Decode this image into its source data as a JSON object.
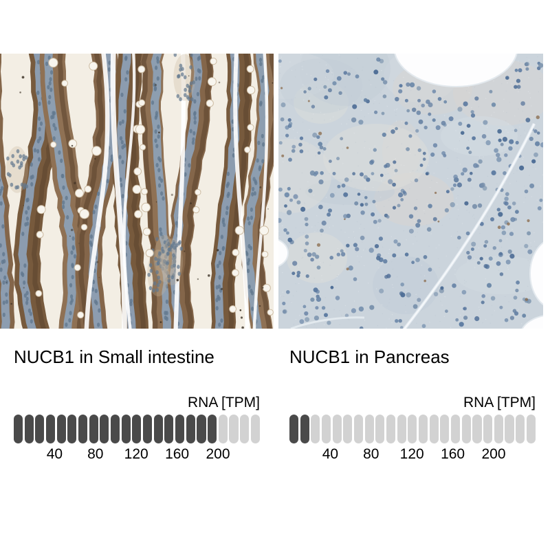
{
  "figure": {
    "panels": [
      {
        "key": "small_intestine",
        "title": "NUCB1 in Small intestine",
        "rna_unit_label": "RNA [TPM]",
        "bar": {
          "total_segments": 23,
          "filled_segments": 19,
          "ticks": [
            40,
            80,
            120,
            160,
            200
          ]
        },
        "approx_value_tpm": 200,
        "micrograph_kind": "ihc-brown-positive-small-intestine"
      },
      {
        "key": "pancreas",
        "title": "NUCB1 in Pancreas",
        "rna_unit_label": "RNA [TPM]",
        "bar": {
          "total_segments": 23,
          "filled_segments": 2,
          "ticks": [
            40,
            80,
            120,
            160,
            200
          ]
        },
        "approx_value_tpm": 20,
        "micrograph_kind": "ihc-blue-negative-pancreas"
      }
    ],
    "colors": {
      "page_background": "#ffffff",
      "text": "#000000",
      "pill_filled": "#4a4a4a",
      "pill_empty": "#d2d2d2",
      "intestine": {
        "bg": "#f3eee4",
        "brown": [
          "#84664a",
          "#775a3d",
          "#8f7154"
        ],
        "brown_dark": "#5d452e",
        "nuclei_band": "#8da0b5",
        "nucleus": "#61788f",
        "stroma": "#c9b59c",
        "goblet": "#f8f5ee",
        "goblet_edge": "#cdbca3",
        "speck": "#32271c"
      },
      "pancreas": {
        "bg": "#cbd4dc",
        "patches": [
          "#d8d5d0",
          "#d3dae1",
          "#c2ccd7",
          "#dfdfda"
        ],
        "grain_light": "#edf0f3",
        "grain_dark": "#b8c3cf",
        "nuclei": [
          "#5d7ba1",
          "#6b87a8",
          "#4f6e96",
          "#7890ab"
        ],
        "speck": "#8a6a4a",
        "crack": "#e7edf2",
        "crack_core": "#f8fafc",
        "blob": "#fdfdfe",
        "blob_edge": "#e3e9ee"
      }
    }
  },
  "chart_data": [
    {
      "type": "bar",
      "title": "NUCB1 in Small intestine",
      "xlabel": "RNA [TPM]",
      "segments_total": 23,
      "segments_filled": 19,
      "tick_values": [
        40,
        80,
        120,
        160,
        200
      ],
      "approx_value_tpm": 200,
      "axis_range_tpm": [
        0,
        240
      ],
      "legend_position": "none",
      "grid": false
    },
    {
      "type": "bar",
      "title": "NUCB1 in Pancreas",
      "xlabel": "RNA [TPM]",
      "segments_total": 23,
      "segments_filled": 2,
      "tick_values": [
        40,
        80,
        120,
        160,
        200
      ],
      "approx_value_tpm": 20,
      "axis_range_tpm": [
        0,
        240
      ],
      "legend_position": "none",
      "grid": false
    }
  ]
}
